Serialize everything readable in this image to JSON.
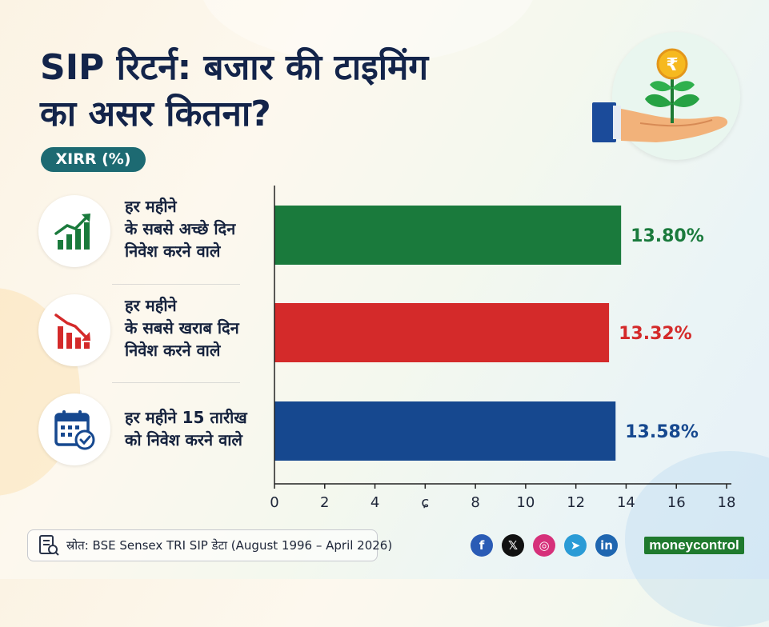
{
  "header": {
    "title_line1": "SIP रिटर्न: बजार की टाइमिंग",
    "title_line2": "का असर कितना?",
    "metric_pill": "XIRR (%)"
  },
  "categories": [
    {
      "icon": "trending-up-bars-icon",
      "lines": [
        "हर महीने",
        "के सबसे अच्छे दिन",
        "निवेश करने वाले"
      ]
    },
    {
      "icon": "trending-down-bars-icon",
      "lines": [
        "हर महीने",
        "के सबसे खराब दिन",
        "निवेश करने वाले"
      ]
    },
    {
      "icon": "calendar-check-icon",
      "lines": [
        "हर महीने 15 तारीख",
        "को निवेश करने वाले"
      ]
    }
  ],
  "chart_data": {
    "type": "bar",
    "orientation": "horizontal",
    "categories": [
      "हर महीने के सबसे अच्छे दिन निवेश करने वाले",
      "हर महीने के सबसे खराब दिन निवेश करने वाले",
      "हर महीने 15 तारीख को निवेश करने वाले"
    ],
    "values": [
      13.8,
      13.32,
      13.58
    ],
    "value_labels": [
      "13.80%",
      "13.32%",
      "13.58%"
    ],
    "colors": [
      "#1a7a3c",
      "#d42a2a",
      "#16488f"
    ],
    "xlim": [
      0,
      18
    ],
    "xticks": [
      0,
      2,
      4,
      6,
      8,
      10,
      12,
      14,
      16,
      18
    ],
    "xtick_labels": [
      "0",
      "2",
      "4",
      "ɕ",
      "8",
      "10",
      "12",
      "14",
      "16",
      "18"
    ],
    "ylabel": "XIRR (%)",
    "grid": false
  },
  "footer": {
    "source": "स्रोत: BSE Sensex TRI SIP डेटा (August 1996 – April 2026)",
    "social": [
      {
        "icon": "facebook-icon",
        "glyph": "f",
        "color": "#2a5bb5"
      },
      {
        "icon": "x-icon",
        "glyph": "𝕏",
        "color": "#111111"
      },
      {
        "icon": "instagram-icon",
        "glyph": "◎",
        "color": "#d6307a"
      },
      {
        "icon": "telegram-icon",
        "glyph": "➤",
        "color": "#2a9bd6"
      },
      {
        "icon": "linkedin-icon",
        "glyph": "in",
        "color": "#1f66b0"
      }
    ],
    "brand": "moneycontrol"
  }
}
